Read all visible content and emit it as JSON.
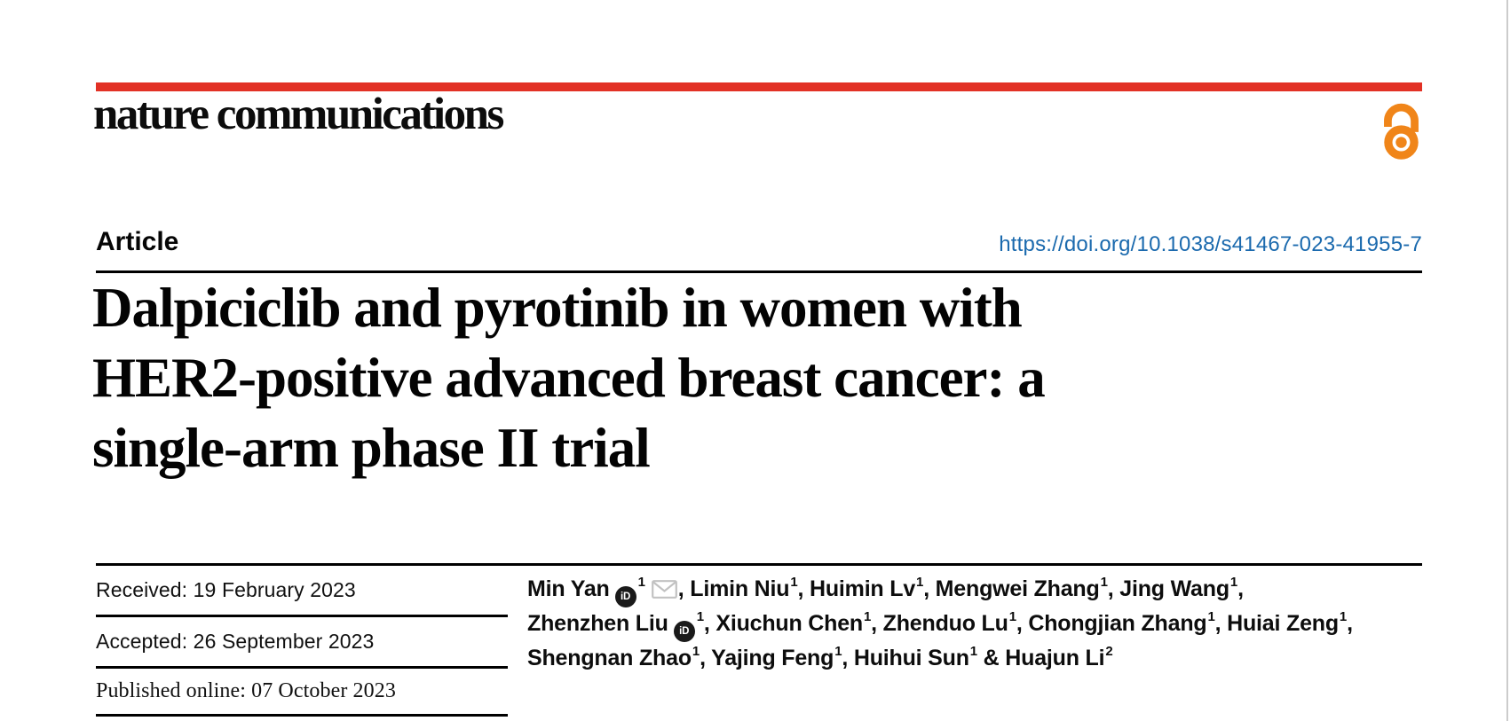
{
  "page": {
    "background": "#ffffff",
    "edge_line_color": "#cccccc"
  },
  "header": {
    "journal": "nature communications",
    "bar_color": "#e23125",
    "open_access_color": "#f08519"
  },
  "article": {
    "kicker": "Article",
    "doi": "https://doi.org/10.1038/s41467-023-41955-7",
    "doi_color": "#1b6aae",
    "title_lines": [
      "Dalpiciclib and pyrotinib in women with",
      "HER2-positive advanced breast cancer: a",
      "single-arm phase II trial"
    ]
  },
  "dates": [
    {
      "label": "Received",
      "value": "19 February 2023",
      "text": "Received: 19 February 2023"
    },
    {
      "label": "Accepted",
      "value": "26 September 2023",
      "text": "Accepted: 26 September 2023"
    },
    {
      "label": "Published online",
      "value": "07 October 2023",
      "text": "Published online: 07 October 2023"
    }
  ],
  "icons": {
    "orcid_text": "iD",
    "orcid_color": "#1a1a1a",
    "mail_color": "#c2c2c2"
  },
  "authors": {
    "lines": [
      [
        [
          "t",
          "Min Yan"
        ],
        [
          "orcid"
        ],
        [
          "sup",
          "1"
        ],
        [
          "mail"
        ],
        [
          "t",
          ", Limin Niu"
        ],
        [
          "sup",
          "1"
        ],
        [
          "t",
          ", Huimin Lv"
        ],
        [
          "sup",
          "1"
        ],
        [
          "t",
          ", Mengwei Zhang"
        ],
        [
          "sup",
          "1"
        ],
        [
          "t",
          ", Jing Wang"
        ],
        [
          "sup",
          "1"
        ],
        [
          "t",
          ","
        ]
      ],
      [
        [
          "t",
          "Zhenzhen Liu"
        ],
        [
          "orcid"
        ],
        [
          "sup",
          "1"
        ],
        [
          "t",
          ", Xiuchun Chen"
        ],
        [
          "sup",
          "1"
        ],
        [
          "t",
          ", Zhenduo Lu"
        ],
        [
          "sup",
          "1"
        ],
        [
          "t",
          ", Chongjian Zhang"
        ],
        [
          "sup",
          "1"
        ],
        [
          "t",
          ", Huiai Zeng"
        ],
        [
          "sup",
          "1"
        ],
        [
          "t",
          ","
        ]
      ],
      [
        [
          "t",
          "Shengnan Zhao"
        ],
        [
          "sup",
          "1"
        ],
        [
          "t",
          ", Yajing Feng"
        ],
        [
          "sup",
          "1"
        ],
        [
          "t",
          ", Huihui Sun"
        ],
        [
          "sup",
          "1"
        ],
        [
          "t",
          " & Huajun Li"
        ],
        [
          "sup",
          "2"
        ]
      ]
    ]
  }
}
